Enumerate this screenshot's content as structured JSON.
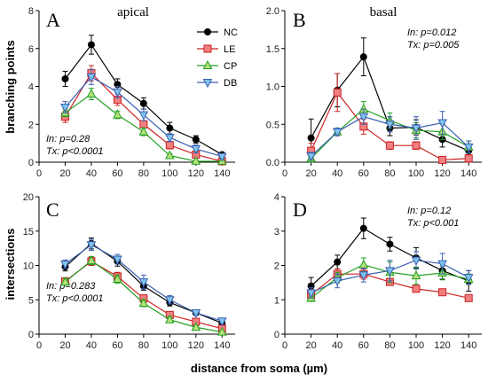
{
  "figure": {
    "xlabel": "distance from soma (µm)",
    "ylabel_top": "branching points",
    "ylabel_bottom": "intersections"
  },
  "legend": [
    {
      "name": "NC",
      "color": "#000000",
      "fill": "#000000",
      "marker": "circle"
    },
    {
      "name": "LE",
      "color": "#cc2222",
      "fill": "#f08080",
      "marker": "square"
    },
    {
      "name": "CP",
      "color": "#22a022",
      "fill": "#b5e07a",
      "marker": "triangle-up"
    },
    {
      "name": "DB",
      "color": "#3a5fb0",
      "fill": "#7fc4ec",
      "marker": "triangle-down"
    }
  ],
  "chart_data": [
    {
      "panel": "A",
      "subtitle": "apical",
      "type": "line",
      "stats": [
        "In: p=0.28",
        "Tx: p<0.0001"
      ],
      "x": [
        20,
        40,
        60,
        80,
        100,
        120,
        140
      ],
      "xlim": [
        0,
        150
      ],
      "ylim": [
        0,
        8
      ],
      "xticks": [
        0,
        20,
        40,
        60,
        80,
        100,
        120,
        140
      ],
      "yticks": [
        0,
        2,
        4,
        6,
        8
      ],
      "series": [
        {
          "name": "NC",
          "values": [
            4.4,
            6.2,
            4.1,
            3.1,
            1.8,
            1.2,
            0.4
          ],
          "err": [
            0.4,
            0.5,
            0.3,
            0.3,
            0.3,
            0.2,
            0.1
          ]
        },
        {
          "name": "LE",
          "values": [
            2.4,
            4.7,
            3.3,
            2.0,
            0.9,
            0.4,
            0.05
          ],
          "err": [
            0.3,
            0.4,
            0.3,
            0.2,
            0.2,
            0.15,
            0.05
          ]
        },
        {
          "name": "CP",
          "values": [
            2.6,
            3.6,
            2.5,
            1.6,
            0.35,
            0.05,
            0.05
          ],
          "err": [
            0.2,
            0.3,
            0.2,
            0.2,
            0.1,
            0.05,
            0.05
          ]
        },
        {
          "name": "DB",
          "values": [
            2.9,
            4.5,
            3.7,
            2.5,
            1.3,
            0.7,
            0.3
          ],
          "err": [
            0.3,
            0.4,
            0.3,
            0.3,
            0.2,
            0.2,
            0.1
          ]
        }
      ]
    },
    {
      "panel": "B",
      "subtitle": "basal",
      "type": "line",
      "stats": [
        "In: p=0.012",
        "Tx: p=0.005"
      ],
      "x": [
        20,
        40,
        60,
        80,
        100,
        120,
        140
      ],
      "xlim": [
        0,
        150
      ],
      "ylim": [
        0,
        2.0
      ],
      "xticks": [
        0,
        20,
        40,
        60,
        80,
        100,
        120,
        140
      ],
      "yticks": [
        0,
        0.5,
        1.0,
        1.5,
        2.0
      ],
      "series": [
        {
          "name": "NC",
          "values": [
            0.32,
            0.95,
            1.39,
            0.45,
            0.46,
            0.3,
            0.15
          ],
          "err": [
            0.25,
            0.22,
            0.25,
            0.1,
            0.1,
            0.1,
            0.08
          ]
        },
        {
          "name": "LE",
          "values": [
            0.15,
            0.92,
            0.47,
            0.22,
            0.22,
            0.03,
            0.05
          ],
          "err": [
            0.1,
            0.25,
            0.1,
            0.05,
            0.05,
            0.03,
            0.05
          ]
        },
        {
          "name": "CP",
          "values": [
            0.05,
            0.4,
            0.7,
            0.55,
            0.42,
            0.4,
            0.2
          ],
          "err": [
            0.05,
            0.05,
            0.1,
            0.1,
            0.1,
            0.1,
            0.08
          ]
        },
        {
          "name": "DB",
          "values": [
            0.08,
            0.4,
            0.6,
            0.5,
            0.45,
            0.52,
            0.2
          ],
          "err": [
            0.05,
            0.05,
            0.1,
            0.1,
            0.15,
            0.15,
            0.08
          ]
        }
      ]
    },
    {
      "panel": "C",
      "type": "line",
      "stats": [
        "In: p=0.283",
        "Tx: p<0.0001"
      ],
      "x": [
        20,
        40,
        60,
        80,
        100,
        120,
        140
      ],
      "xlim": [
        0,
        150
      ],
      "ylim": [
        0,
        20
      ],
      "xticks": [
        0,
        20,
        40,
        60,
        80,
        100,
        120,
        140
      ],
      "yticks": [
        0,
        5,
        10,
        15,
        20
      ],
      "series": [
        {
          "name": "NC",
          "values": [
            9.8,
            13.2,
            10.6,
            7.0,
            4.6,
            3.1,
            1.6
          ],
          "err": [
            0.6,
            0.8,
            0.7,
            0.6,
            0.5,
            0.3,
            0.3
          ]
        },
        {
          "name": "LE",
          "values": [
            7.7,
            10.6,
            8.4,
            5.2,
            2.8,
            1.8,
            0.8
          ],
          "err": [
            0.5,
            0.6,
            0.6,
            0.5,
            0.4,
            0.3,
            0.2
          ]
        },
        {
          "name": "CP",
          "values": [
            7.6,
            10.7,
            8.0,
            4.5,
            2.1,
            1.0,
            0.3
          ],
          "err": [
            0.5,
            0.6,
            0.6,
            0.5,
            0.4,
            0.2,
            0.1
          ]
        },
        {
          "name": "DB",
          "values": [
            10.2,
            13.0,
            10.9,
            7.6,
            5.0,
            3.1,
            1.9
          ],
          "err": [
            0.6,
            0.8,
            0.7,
            1.0,
            0.6,
            0.4,
            0.3
          ]
        }
      ]
    },
    {
      "panel": "D",
      "type": "line",
      "stats": [
        "In: p=0.12",
        "Tx: p<0.001"
      ],
      "x": [
        20,
        40,
        60,
        80,
        100,
        120,
        140
      ],
      "xlim": [
        0,
        150
      ],
      "ylim": [
        0,
        4
      ],
      "xticks": [
        0,
        20,
        40,
        60,
        80,
        100,
        120,
        140
      ],
      "yticks": [
        0,
        1,
        2,
        3,
        4
      ],
      "series": [
        {
          "name": "NC",
          "values": [
            1.4,
            2.1,
            3.08,
            2.62,
            2.22,
            1.85,
            1.55
          ],
          "err": [
            0.25,
            0.2,
            0.3,
            0.2,
            0.3,
            0.25,
            0.3
          ]
        },
        {
          "name": "LE",
          "values": [
            1.15,
            1.75,
            1.75,
            1.52,
            1.32,
            1.22,
            1.05
          ],
          "err": [
            0.15,
            0.15,
            0.15,
            0.1,
            0.08,
            0.08,
            0.08
          ]
        },
        {
          "name": "CP",
          "values": [
            1.05,
            1.65,
            2.02,
            1.8,
            1.7,
            1.78,
            1.6
          ],
          "err": [
            0.1,
            0.15,
            0.2,
            0.3,
            0.25,
            0.2,
            0.15
          ]
        },
        {
          "name": "DB",
          "values": [
            1.2,
            1.55,
            1.72,
            1.85,
            2.15,
            2.05,
            1.65
          ],
          "err": [
            0.15,
            0.2,
            0.2,
            0.3,
            0.25,
            0.3,
            0.2
          ]
        }
      ]
    }
  ]
}
